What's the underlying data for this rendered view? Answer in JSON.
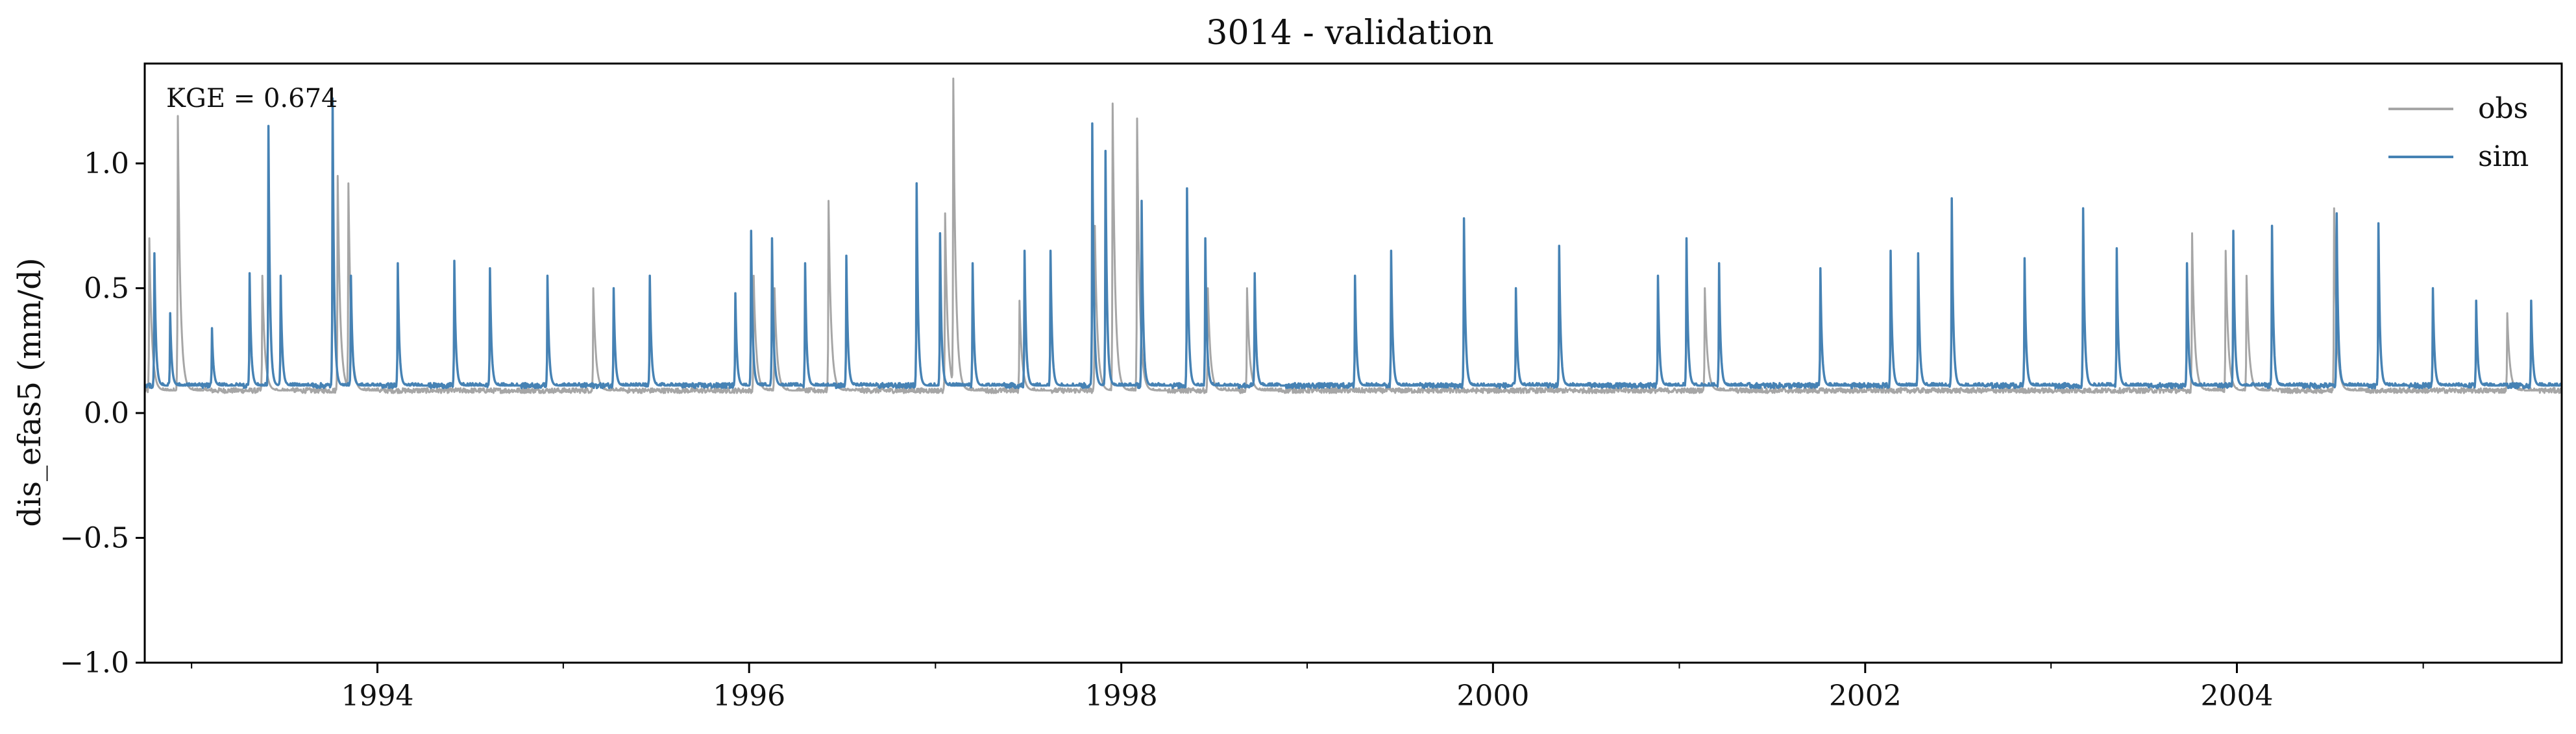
{
  "chart_data": {
    "type": "line",
    "title": "3014 - validation",
    "ylabel": "dis_efas5 (mm/d)",
    "xlabel": "",
    "x_range": [
      "1992-10-01",
      "2005-09-30"
    ],
    "ylim": [
      -1.0,
      1.4
    ],
    "yticks": [
      -1.0,
      -0.5,
      0.0,
      0.5,
      1.0
    ],
    "ytick_labels": [
      "−1.0",
      "−0.5",
      "0.0",
      "0.5",
      "1.0"
    ],
    "xtick_labels": [
      "1994",
      "1996",
      "1998",
      "2000",
      "2002",
      "2004"
    ],
    "xtick_dates": [
      "1994-01-01",
      "1996-01-01",
      "1998-01-01",
      "2000-01-01",
      "2002-01-01",
      "2004-01-01"
    ],
    "annotation": "KGE = 0.674",
    "legend": {
      "position": "top-right",
      "entries": [
        "obs",
        "sim"
      ]
    },
    "grid": false,
    "colors": {
      "obs": "#a6a6a6",
      "sim": "#4682b4"
    },
    "series": [
      {
        "name": "obs",
        "color": "#a6a6a6",
        "baseline": 0.09,
        "peaks": [
          [
            "1992-10-10",
            0.7
          ],
          [
            "1992-12-05",
            1.19
          ],
          [
            "1993-05-20",
            0.55
          ],
          [
            "1993-10-15",
            0.95
          ],
          [
            "1993-11-05",
            0.92
          ],
          [
            "1995-03-01",
            0.5
          ],
          [
            "1996-01-10",
            0.55
          ],
          [
            "1996-02-20",
            0.5
          ],
          [
            "1996-06-05",
            0.85
          ],
          [
            "1997-01-20",
            0.8
          ],
          [
            "1997-02-05",
            1.34
          ],
          [
            "1997-06-15",
            0.45
          ],
          [
            "1997-11-10",
            0.75
          ],
          [
            "1997-12-15",
            1.24
          ],
          [
            "1998-02-01",
            1.18
          ],
          [
            "1998-06-20",
            0.5
          ],
          [
            "1998-09-05",
            0.5
          ],
          [
            "2001-02-20",
            0.5
          ],
          [
            "2003-10-05",
            0.72
          ],
          [
            "2003-12-10",
            0.65
          ],
          [
            "2004-01-20",
            0.55
          ],
          [
            "2004-07-10",
            0.82
          ],
          [
            "2005-06-15",
            0.4
          ]
        ]
      },
      {
        "name": "sim",
        "color": "#4682b4",
        "baseline": 0.11,
        "peaks": [
          [
            "1992-10-20",
            0.64
          ],
          [
            "1992-11-20",
            0.4
          ],
          [
            "1993-02-10",
            0.34
          ],
          [
            "1993-04-25",
            0.56
          ],
          [
            "1993-06-01",
            1.15
          ],
          [
            "1993-06-25",
            0.55
          ],
          [
            "1993-10-05",
            1.26
          ],
          [
            "1993-11-10",
            0.55
          ],
          [
            "1994-02-10",
            0.6
          ],
          [
            "1994-06-01",
            0.61
          ],
          [
            "1994-08-10",
            0.58
          ],
          [
            "1994-12-01",
            0.55
          ],
          [
            "1995-04-10",
            0.5
          ],
          [
            "1995-06-20",
            0.55
          ],
          [
            "1995-12-05",
            0.48
          ],
          [
            "1996-01-05",
            0.73
          ],
          [
            "1996-02-15",
            0.7
          ],
          [
            "1996-04-20",
            0.6
          ],
          [
            "1996-07-10",
            0.63
          ],
          [
            "1996-11-25",
            0.92
          ],
          [
            "1997-01-10",
            0.72
          ],
          [
            "1997-03-15",
            0.6
          ],
          [
            "1997-06-25",
            0.65
          ],
          [
            "1997-08-15",
            0.65
          ],
          [
            "1997-11-05",
            1.16
          ],
          [
            "1997-12-01",
            1.05
          ],
          [
            "1998-02-10",
            0.85
          ],
          [
            "1998-05-10",
            0.9
          ],
          [
            "1998-06-15",
            0.7
          ],
          [
            "1998-09-20",
            0.56
          ],
          [
            "1999-04-05",
            0.55
          ],
          [
            "1999-06-15",
            0.65
          ],
          [
            "1999-11-05",
            0.78
          ],
          [
            "2000-02-15",
            0.5
          ],
          [
            "2000-05-10",
            0.67
          ],
          [
            "2000-11-20",
            0.55
          ],
          [
            "2001-01-15",
            0.7
          ],
          [
            "2001-03-20",
            0.6
          ],
          [
            "2001-10-05",
            0.58
          ],
          [
            "2002-02-20",
            0.65
          ],
          [
            "2002-04-15",
            0.64
          ],
          [
            "2002-06-20",
            0.86
          ],
          [
            "2002-11-10",
            0.62
          ],
          [
            "2003-03-05",
            0.82
          ],
          [
            "2003-05-10",
            0.66
          ],
          [
            "2003-09-25",
            0.6
          ],
          [
            "2003-12-25",
            0.73
          ],
          [
            "2004-03-10",
            0.75
          ],
          [
            "2004-07-15",
            0.8
          ],
          [
            "2004-10-05",
            0.76
          ],
          [
            "2005-01-20",
            0.5
          ],
          [
            "2005-04-15",
            0.45
          ],
          [
            "2005-08-01",
            0.45
          ]
        ]
      }
    ]
  }
}
